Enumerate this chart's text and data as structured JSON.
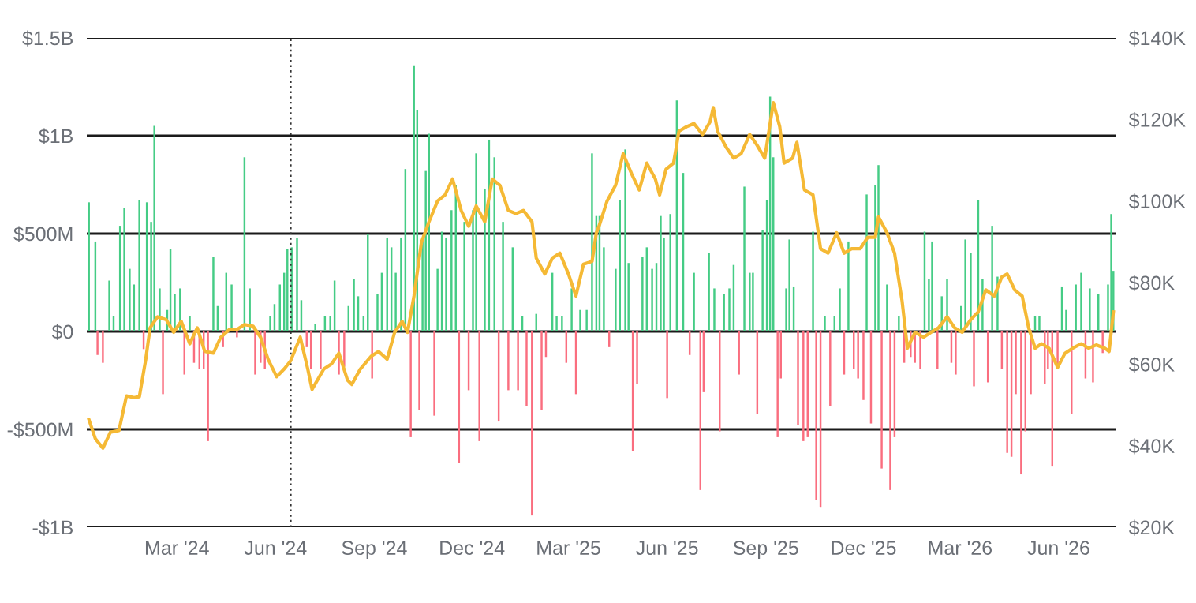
{
  "chart_data": {
    "type": "bar",
    "xlim": [
      "2023-12-08",
      "2026-07-24"
    ],
    "xticks": [
      {
        "value": "2024-03-01",
        "label": "Mar '24"
      },
      {
        "value": "2024-06-01",
        "label": "Jun '24"
      },
      {
        "value": "2024-09-01",
        "label": "Sep '24"
      },
      {
        "value": "2024-12-01",
        "label": "Dec '24"
      },
      {
        "value": "2025-03-01",
        "label": "Mar '25"
      },
      {
        "value": "2025-06-01",
        "label": "Jun '25"
      },
      {
        "value": "2025-09-01",
        "label": "Sep '25"
      },
      {
        "value": "2025-12-01",
        "label": "Dec '25"
      },
      {
        "value": "2026-03-01",
        "label": "Mar '26"
      },
      {
        "value": "2026-06-01",
        "label": "Jun '26"
      }
    ],
    "ylim": [
      -1000000000,
      1500000000
    ],
    "yticks": [
      {
        "value": -1000000000,
        "label": "-$1B"
      },
      {
        "value": -500000000,
        "label": "-$500M"
      },
      {
        "value": 0,
        "label": "$0"
      },
      {
        "value": 500000000,
        "label": "$500M"
      },
      {
        "value": 1000000000,
        "label": "$1B"
      },
      {
        "value": 1500000000,
        "label": "$1.5B"
      }
    ],
    "y2lim": [
      20,
      140
    ],
    "y2ticks": [
      {
        "value": 20,
        "label": "$20K"
      },
      {
        "value": 40,
        "label": "$40K"
      },
      {
        "value": 60,
        "label": "$60K"
      },
      {
        "value": 80,
        "label": "$80K"
      },
      {
        "value": 100,
        "label": "$100K"
      },
      {
        "value": 120,
        "label": "$120K"
      },
      {
        "value": 140,
        "label": "$140K"
      }
    ],
    "grid": "y",
    "legend": false,
    "ref_lines": [
      {
        "axis": "x",
        "value": "2024-06-15",
        "label": null,
        "color": "#333333",
        "line_style": "dotted"
      }
    ],
    "series": [
      {
        "color": "#45cc85",
        "x": [
          "2023-12-10",
          "2023-12-16",
          "2023-12-29",
          "2024-01-02",
          "2024-01-08",
          "2024-01-12",
          "2024-01-17",
          "2024-01-21",
          "2024-01-26",
          "2024-02-02",
          "2024-02-06",
          "2024-02-09",
          "2024-02-14",
          "2024-02-21",
          "2024-02-24",
          "2024-02-28",
          "2024-03-04",
          "2024-03-13",
          "2024-04-04",
          "2024-04-08",
          "2024-04-16",
          "2024-04-21",
          "2024-05-03",
          "2024-05-08",
          "2024-05-27",
          "2024-05-31",
          "2024-06-05",
          "2024-06-09",
          "2024-06-12",
          "2024-06-16",
          "2024-06-21",
          "2024-06-25",
          "2024-07-08",
          "2024-07-17",
          "2024-07-22",
          "2024-07-26",
          "2024-08-08",
          "2024-08-13",
          "2024-08-17",
          "2024-08-22",
          "2024-08-26",
          "2024-09-04",
          "2024-09-08",
          "2024-09-13",
          "2024-09-17",
          "2024-09-21",
          "2024-09-26",
          "2024-09-30",
          "2024-10-08",
          "2024-10-11",
          "2024-10-16",
          "2024-10-19",
          "2024-10-22",
          "2024-10-30",
          "2024-11-03",
          "2024-11-07",
          "2024-11-12",
          "2024-11-16",
          "2024-11-24",
          "2024-12-02",
          "2024-12-05",
          "2024-12-13",
          "2024-12-17",
          "2024-12-22",
          "2024-12-30",
          "2025-01-08",
          "2025-01-17",
          "2025-01-30",
          "2025-02-14",
          "2025-02-18",
          "2025-02-23",
          "2025-03-04",
          "2025-03-12",
          "2025-03-18",
          "2025-03-23",
          "2025-03-27",
          "2025-03-30",
          "2025-04-03",
          "2025-04-14",
          "2025-04-18",
          "2025-04-23",
          "2025-04-26",
          "2025-05-09",
          "2025-05-13",
          "2025-05-18",
          "2025-05-22",
          "2025-05-26",
          "2025-05-29",
          "2025-06-04",
          "2025-06-10",
          "2025-06-16",
          "2025-06-26",
          "2025-07-10",
          "2025-07-15",
          "2025-07-24",
          "2025-07-29",
          "2025-08-02",
          "2025-08-12",
          "2025-08-17",
          "2025-08-20",
          "2025-08-29",
          "2025-09-02",
          "2025-09-05",
          "2025-09-08",
          "2025-09-20",
          "2025-09-23",
          "2025-09-27",
          "2025-10-15",
          "2025-10-26",
          "2025-11-04",
          "2025-11-09",
          "2025-11-17",
          "2025-12-04",
          "2025-12-12",
          "2025-12-15",
          "2025-12-23",
          "2026-01-03",
          "2026-01-27",
          "2026-01-31",
          "2026-02-03",
          "2026-02-12",
          "2026-02-17",
          "2026-03-02",
          "2026-03-06",
          "2026-03-11",
          "2026-03-18",
          "2026-03-22",
          "2026-03-31",
          "2026-04-05",
          "2026-05-10",
          "2026-05-14",
          "2026-06-04",
          "2026-06-08",
          "2026-06-17",
          "2026-06-22",
          "2026-06-30",
          "2026-07-08",
          "2026-07-17",
          "2026-07-20",
          "2026-07-22"
        ],
        "values": [
          660000000.0,
          460000000.0,
          260000000.0,
          80000000.0,
          540000000.0,
          630000000.0,
          320000000.0,
          240000000.0,
          670000000.0,
          660000000.0,
          560000000.0,
          1050000000.0,
          220000000.0,
          110000000.0,
          420000000.0,
          190000000.0,
          220000000.0,
          80000000.0,
          380000000.0,
          130000000.0,
          300000000.0,
          240000000.0,
          890000000.0,
          220000000.0,
          80000000.0,
          140000000.0,
          240000000.0,
          300000000.0,
          420000000.0,
          430000000.0,
          480000000.0,
          160000000.0,
          40000000.0,
          80000000.0,
          80000000.0,
          260000000.0,
          130000000.0,
          270000000.0,
          180000000.0,
          80000000.0,
          500000000.0,
          190000000.0,
          300000000.0,
          480000000.0,
          430000000.0,
          300000000.0,
          480000000.0,
          830000000.0,
          1360000000.0,
          1130000000.0,
          470000000.0,
          820000000.0,
          1010000000.0,
          320000000.0,
          510000000.0,
          480000000.0,
          620000000.0,
          750000000.0,
          560000000.0,
          620000000.0,
          910000000.0,
          730000000.0,
          980000000.0,
          890000000.0,
          560000000.0,
          430000000.0,
          80000000.0,
          90000000.0,
          300000000.0,
          80000000.0,
          80000000.0,
          220000000.0,
          110000000.0,
          110000000.0,
          910000000.0,
          590000000.0,
          590000000.0,
          430000000.0,
          320000000.0,
          670000000.0,
          930000000.0,
          350000000.0,
          380000000.0,
          430000000.0,
          320000000.0,
          350000000.0,
          590000000.0,
          480000000.0,
          600000000.0,
          1180000000.0,
          810000000.0,
          300000000.0,
          400000000.0,
          220000000.0,
          190000000.0,
          220000000.0,
          340000000.0,
          740000000.0,
          300000000.0,
          300000000.0,
          520000000.0,
          670000000.0,
          1200000000.0,
          890000000.0,
          220000000.0,
          470000000.0,
          230000000.0,
          510000000.0,
          80000000.0,
          80000000.0,
          220000000.0,
          460000000.0,
          700000000.0,
          750000000.0,
          850000000.0,
          240000000.0,
          80000000.0,
          510000000.0,
          270000000.0,
          460000000.0,
          180000000.0,
          270000000.0,
          130000000.0,
          470000000.0,
          400000000.0,
          670000000.0,
          270000000.0,
          540000000.0,
          280000000.0,
          80000000.0,
          80000000.0,
          230000000.0,
          110000000.0,
          240000000.0,
          300000000.0,
          220000000.0,
          190000000.0,
          240000000.0,
          600000000.0,
          310000000.0
        ]
      },
      {
        "color": "#fa6e7f",
        "x": [
          "2023-12-18",
          "2023-12-23",
          "2024-01-30",
          "2024-02-17",
          "2024-03-08",
          "2024-03-17",
          "2024-03-22",
          "2024-03-26",
          "2024-03-30",
          "2024-04-13",
          "2024-04-26",
          "2024-05-13",
          "2024-05-18",
          "2024-05-22",
          "2024-06-30",
          "2024-07-04",
          "2024-07-13",
          "2024-07-30",
          "2024-08-04",
          "2024-08-30",
          "2024-10-05",
          "2024-10-13",
          "2024-10-27",
          "2024-11-19",
          "2024-11-28",
          "2024-12-08",
          "2024-12-26",
          "2025-01-04",
          "2025-01-13",
          "2025-01-21",
          "2025-01-26",
          "2025-02-04",
          "2025-02-08",
          "2025-02-27",
          "2025-03-08",
          "2025-04-08",
          "2025-04-30",
          "2025-05-04",
          "2025-06-01",
          "2025-06-22",
          "2025-07-02",
          "2025-07-05",
          "2025-07-20",
          "2025-08-07",
          "2025-08-24",
          "2025-09-12",
          "2025-09-15",
          "2025-10-01",
          "2025-10-06",
          "2025-10-10",
          "2025-10-18",
          "2025-10-22",
          "2025-10-31",
          "2025-11-13",
          "2025-11-22",
          "2025-11-26",
          "2025-12-01",
          "2025-12-08",
          "2025-12-18",
          "2025-12-26",
          "2025-12-30",
          "2026-01-08",
          "2026-01-14",
          "2026-01-18",
          "2026-01-23",
          "2026-02-08",
          "2026-02-21",
          "2026-02-25",
          "2026-03-14",
          "2026-03-27",
          "2026-04-09",
          "2026-04-14",
          "2026-04-18",
          "2026-04-22",
          "2026-04-27",
          "2026-05-01",
          "2026-05-06",
          "2026-05-19",
          "2026-05-22",
          "2026-05-26",
          "2026-05-31",
          "2026-06-13",
          "2026-06-26",
          "2026-07-03",
          "2026-07-12"
        ],
        "values": [
          -120000000.0,
          -160000000.0,
          -90000000.0,
          -320000000.0,
          -220000000.0,
          -160000000.0,
          -190000000.0,
          -190000000.0,
          -560000000.0,
          -80000000.0,
          -30000000.0,
          -220000000.0,
          -160000000.0,
          -190000000.0,
          -80000000.0,
          -190000000.0,
          -190000000.0,
          -220000000.0,
          -180000000.0,
          -240000000.0,
          -540000000.0,
          -400000000.0,
          -430000000.0,
          -670000000.0,
          -300000000.0,
          -560000000.0,
          -460000000.0,
          -300000000.0,
          -300000000.0,
          -380000000.0,
          -940000000.0,
          -400000000.0,
          -130000000.0,
          -160000000.0,
          -320000000.0,
          -80000000.0,
          -610000000.0,
          -270000000.0,
          -340000000.0,
          -120000000.0,
          -810000000.0,
          -310000000.0,
          -510000000.0,
          -220000000.0,
          -420000000.0,
          -540000000.0,
          -240000000.0,
          -480000000.0,
          -560000000.0,
          -540000000.0,
          -860000000.0,
          -900000000.0,
          -380000000.0,
          -220000000.0,
          -190000000.0,
          -240000000.0,
          -350000000.0,
          -470000000.0,
          -700000000.0,
          -810000000.0,
          -540000000.0,
          -160000000.0,
          -130000000.0,
          -160000000.0,
          -190000000.0,
          -190000000.0,
          -160000000.0,
          -220000000.0,
          -280000000.0,
          -260000000.0,
          -190000000.0,
          -620000000.0,
          -640000000.0,
          -320000000.0,
          -730000000.0,
          -510000000.0,
          -320000000.0,
          -270000000.0,
          -190000000.0,
          -690000000.0,
          -190000000.0,
          -420000000.0,
          -240000000.0,
          -260000000.0,
          -110000000.0
        ]
      },
      {
        "type": "line",
        "axis": "y2",
        "color": "#f5b935",
        "x": [
          "2023-12-10",
          "2023-12-16",
          "2023-12-23",
          "2023-12-30",
          "2024-01-07",
          "2024-01-14",
          "2024-01-21",
          "2024-01-26",
          "2024-02-01",
          "2024-02-05",
          "2024-02-12",
          "2024-02-20",
          "2024-02-27",
          "2024-03-05",
          "2024-03-13",
          "2024-03-20",
          "2024-03-27",
          "2024-04-04",
          "2024-04-11",
          "2024-04-19",
          "2024-04-26",
          "2024-05-03",
          "2024-05-11",
          "2024-05-18",
          "2024-05-25",
          "2024-06-02",
          "2024-06-09",
          "2024-06-15",
          "2024-06-24",
          "2024-07-01",
          "2024-07-05",
          "2024-07-16",
          "2024-07-23",
          "2024-07-30",
          "2024-08-07",
          "2024-08-11",
          "2024-08-19",
          "2024-08-29",
          "2024-09-05",
          "2024-09-13",
          "2024-09-20",
          "2024-09-27",
          "2024-10-02",
          "2024-10-08",
          "2024-10-15",
          "2024-10-22",
          "2024-10-30",
          "2024-11-06",
          "2024-11-13",
          "2024-11-21",
          "2024-11-28",
          "2024-12-05",
          "2024-12-13",
          "2024-12-20",
          "2024-12-27",
          "2025-01-04",
          "2025-01-11",
          "2025-01-18",
          "2025-01-26",
          "2025-01-30",
          "2025-02-07",
          "2025-02-14",
          "2025-02-21",
          "2025-03-01",
          "2025-03-08",
          "2025-03-15",
          "2025-03-23",
          "2025-03-27",
          "2025-03-30",
          "2025-04-06",
          "2025-04-14",
          "2025-04-21",
          "2025-04-29",
          "2025-05-06",
          "2025-05-13",
          "2025-05-21",
          "2025-05-25",
          "2025-05-31",
          "2025-06-07",
          "2025-06-12",
          "2025-06-19",
          "2025-06-26",
          "2025-07-04",
          "2025-07-11",
          "2025-07-14",
          "2025-07-18",
          "2025-07-26",
          "2025-08-02",
          "2025-08-09",
          "2025-08-17",
          "2025-08-24",
          "2025-08-31",
          "2025-09-08",
          "2025-09-14",
          "2025-09-18",
          "2025-09-26",
          "2025-09-30",
          "2025-10-07",
          "2025-10-15",
          "2025-10-22",
          "2025-10-29",
          "2025-11-06",
          "2025-11-13",
          "2025-11-20",
          "2025-11-28",
          "2025-12-05",
          "2025-12-12",
          "2025-12-15",
          "2025-12-23",
          "2025-12-30",
          "2026-01-06",
          "2026-01-11",
          "2026-01-18",
          "2026-01-26",
          "2026-02-02",
          "2026-02-09",
          "2026-02-17",
          "2026-02-24",
          "2026-03-03",
          "2026-03-11",
          "2026-03-18",
          "2026-03-25",
          "2026-04-02",
          "2026-04-09",
          "2026-04-14",
          "2026-04-21",
          "2026-04-28",
          "2026-05-04",
          "2026-05-10",
          "2026-05-16",
          "2026-05-23",
          "2026-05-31",
          "2026-06-07",
          "2026-06-14",
          "2026-06-22",
          "2026-06-29",
          "2026-07-06",
          "2026-07-14",
          "2026-07-18",
          "2026-07-22"
        ],
        "values": [
          46.4,
          41.7,
          39.4,
          43.3,
          43.7,
          52.2,
          51.8,
          52,
          61.2,
          68.9,
          71.6,
          70.9,
          67.8,
          70.5,
          65,
          68.9,
          63.1,
          62.7,
          66.6,
          68.5,
          68.5,
          69.7,
          69.3,
          66.6,
          61.2,
          56.9,
          58.8,
          60.8,
          66.6,
          58.8,
          53.8,
          58.8,
          60,
          62.7,
          56.1,
          55,
          58.8,
          61.9,
          63.1,
          61.2,
          67.8,
          70.5,
          67.8,
          76.7,
          89.9,
          94.9,
          100,
          101.5,
          105.4,
          97.7,
          93.8,
          98.8,
          94.9,
          105.4,
          103.9,
          97.7,
          96.9,
          97.7,
          94.9,
          86,
          82.1,
          86,
          87.2,
          82.1,
          76.7,
          84.5,
          85.2,
          92.2,
          94.2,
          100,
          103.9,
          111.6,
          106.6,
          102.7,
          109.3,
          105.4,
          101.5,
          107.8,
          109.3,
          117.1,
          118.2,
          119,
          116.3,
          119.4,
          122.9,
          117.1,
          113.2,
          110.5,
          111.6,
          116.3,
          113.6,
          110.5,
          124.1,
          118.2,
          109.3,
          110.5,
          114.4,
          102.7,
          101.5,
          88.3,
          87.2,
          92.2,
          87.2,
          88.3,
          88.3,
          91.1,
          91.1,
          96.1,
          92.2,
          87.2,
          75.5,
          63.9,
          67.8,
          66.6,
          67.8,
          68.9,
          71.6,
          68.9,
          67.8,
          70.9,
          72.8,
          78.2,
          76.7,
          81.4,
          82.1,
          78.2,
          76.7,
          68.9,
          63.9,
          65,
          63.9,
          59.2,
          62.7,
          63.9,
          65,
          63.9,
          64.7,
          63.9,
          63.1,
          72.8
        ]
      }
    ]
  }
}
